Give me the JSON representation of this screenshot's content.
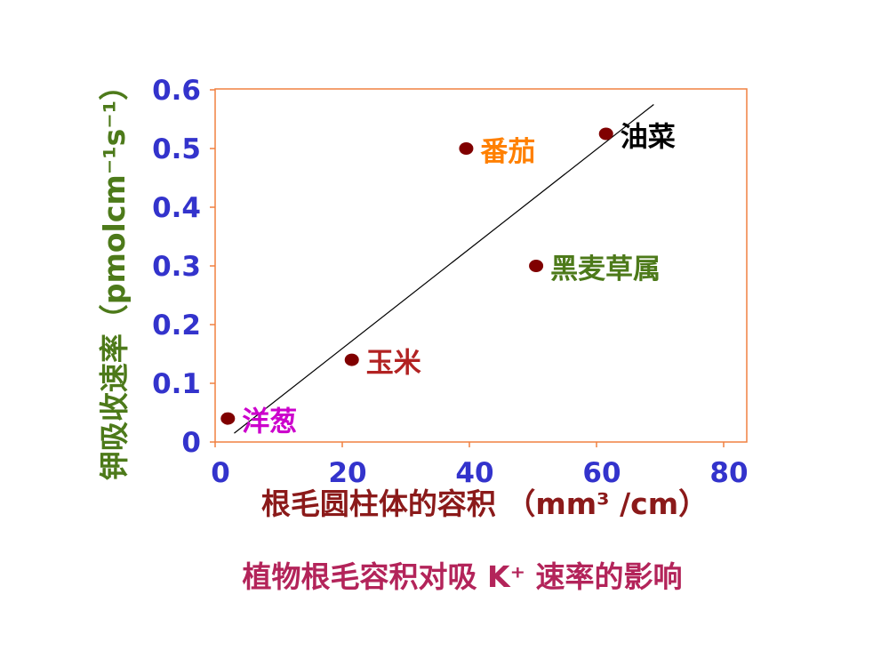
{
  "chart_data": {
    "type": "scatter",
    "title": "植物根毛容积对吸 K⁺ 速率的影响",
    "xlabel": "根毛圆柱体的容积 （mm³ /cm）",
    "ylabel_main": "钾吸收速率",
    "ylabel_unit": "（pmolcm⁻¹s⁻¹）",
    "xlim": [
      0,
      80
    ],
    "ylim": [
      0,
      0.6
    ],
    "x_ticks": [
      0,
      20,
      40,
      60,
      80
    ],
    "x_tick_labels": [
      "0",
      "20",
      "40",
      "60",
      "80"
    ],
    "y_ticks": [
      0,
      0.1,
      0.2,
      0.3,
      0.4,
      0.5,
      0.6
    ],
    "y_tick_labels": [
      "0",
      "0.1",
      "0.2",
      "0.3",
      "0.4",
      "0.5",
      "0.6"
    ],
    "points": [
      {
        "label": "洋葱",
        "x": 2,
        "y": 0.04,
        "label_color": "#cc00cc"
      },
      {
        "label": "玉米",
        "x": 21.5,
        "y": 0.14,
        "label_color": "#b22222"
      },
      {
        "label": "番茄",
        "x": 39.5,
        "y": 0.5,
        "label_color": "#ff8000"
      },
      {
        "label": "黑麦草属",
        "x": 50.5,
        "y": 0.3,
        "label_color": "#4d7a1a"
      },
      {
        "label": "油菜",
        "x": 61.5,
        "y": 0.525,
        "label_color": "#000000"
      }
    ],
    "trendline": {
      "x": [
        3,
        69
      ],
      "y": [
        0.015,
        0.575
      ]
    },
    "grid": false,
    "legend": "none"
  },
  "colors": {
    "tick_labels": "#3333cc",
    "axis_frame": "#f08040",
    "marker": "#800000",
    "trendline": "#000000",
    "xlabel": "#8b1a1a",
    "ylabel": "#4d7a1a",
    "title": "#b3245a"
  }
}
